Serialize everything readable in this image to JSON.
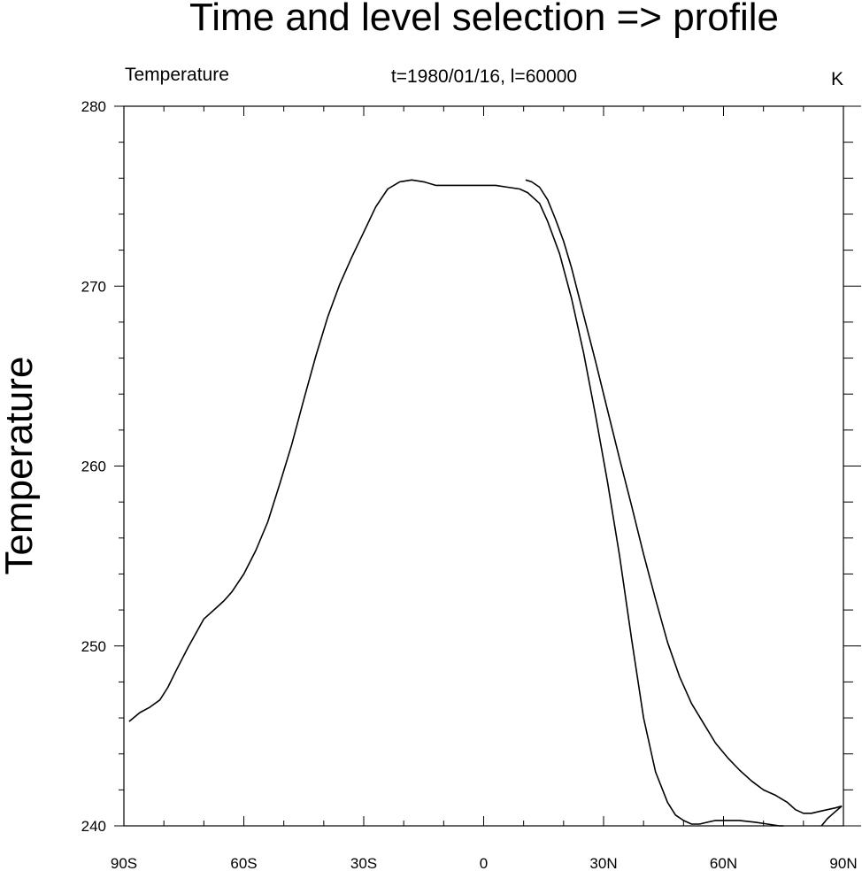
{
  "chart_data": {
    "type": "line",
    "title": "Time and level selection => profile",
    "left_string": "Temperature",
    "center_string": "t=1980/01/16, l=60000",
    "right_string": "K",
    "ylabel": "Temperature",
    "xlabel": "",
    "xlim": [
      -90,
      90
    ],
    "ylim": [
      240,
      280
    ],
    "x_ticks": [
      {
        "value": -90,
        "label": "90S"
      },
      {
        "value": -60,
        "label": "60S"
      },
      {
        "value": -30,
        "label": "30S"
      },
      {
        "value": 0,
        "label": "0"
      },
      {
        "value": 30,
        "label": "30N"
      },
      {
        "value": 60,
        "label": "60N"
      },
      {
        "value": 90,
        "label": "90N"
      }
    ],
    "y_ticks": [
      {
        "value": 240,
        "label": "240"
      },
      {
        "value": 250,
        "label": "250"
      },
      {
        "value": 260,
        "label": "260"
      },
      {
        "value": 270,
        "label": "270"
      },
      {
        "value": 280,
        "label": "280"
      }
    ],
    "x_minor_step": 10,
    "y_minor_step": 2,
    "grid": false,
    "series": [
      {
        "x": [
          -88.7,
          -86,
          -83.5,
          -81,
          -79,
          -77,
          -74,
          -72,
          -70,
          -67,
          -65,
          -63,
          -60,
          -57,
          -54,
          -51,
          -48,
          -45,
          -42,
          -39,
          -36,
          -33,
          -30,
          -27,
          -24,
          -21,
          -18,
          -15,
          -12,
          -9,
          -6,
          -3,
          0,
          3,
          6,
          9,
          11,
          14,
          16,
          19,
          22,
          25,
          28,
          31,
          34,
          37,
          40,
          43,
          46,
          48,
          50,
          52,
          54,
          56,
          58,
          61,
          64,
          68,
          71,
          74,
          75
        ],
        "y": [
          245.8,
          246.3,
          246.6,
          247.0,
          247.7,
          248.6,
          249.9,
          250.7,
          251.5,
          252.1,
          252.5,
          253.0,
          254.0,
          255.3,
          256.9,
          259.0,
          261.2,
          263.7,
          266.1,
          268.3,
          270.1,
          271.6,
          273.0,
          274.4,
          275.4,
          275.8,
          275.9,
          275.8,
          275.6,
          275.6,
          275.6,
          275.6,
          275.6,
          275.6,
          275.5,
          275.4,
          275.2,
          274.6,
          273.6,
          271.8,
          269.3,
          266.3,
          262.8,
          259.1,
          255.0,
          250.4,
          246.0,
          243.0,
          241.3,
          240.6,
          240.3,
          240.1,
          240.1,
          240.2,
          240.3,
          240.3,
          240.3,
          240.2,
          240.1,
          240.0,
          240.0
        ]
      },
      {
        "x": [
          10.5,
          12,
          14,
          16,
          18,
          20,
          22,
          25,
          28,
          31,
          34,
          37,
          40,
          43,
          46,
          49,
          52,
          55,
          58,
          61,
          64,
          67,
          70,
          73,
          76,
          78,
          80,
          82,
          84,
          86,
          88,
          89.6
        ],
        "y": [
          275.9,
          275.8,
          275.5,
          274.8,
          273.7,
          272.5,
          271.0,
          268.4,
          265.8,
          263.1,
          260.4,
          257.8,
          255.1,
          252.6,
          250.2,
          248.3,
          246.8,
          245.7,
          244.6,
          243.8,
          243.1,
          242.5,
          242.0,
          241.7,
          241.3,
          240.9,
          240.7,
          240.7,
          240.8,
          240.9,
          241.0,
          241.1
        ]
      },
      {
        "x": [
          84.5,
          86,
          87.5,
          89.6
        ],
        "y": [
          240.0,
          240.4,
          240.7,
          241.1
        ]
      }
    ]
  }
}
